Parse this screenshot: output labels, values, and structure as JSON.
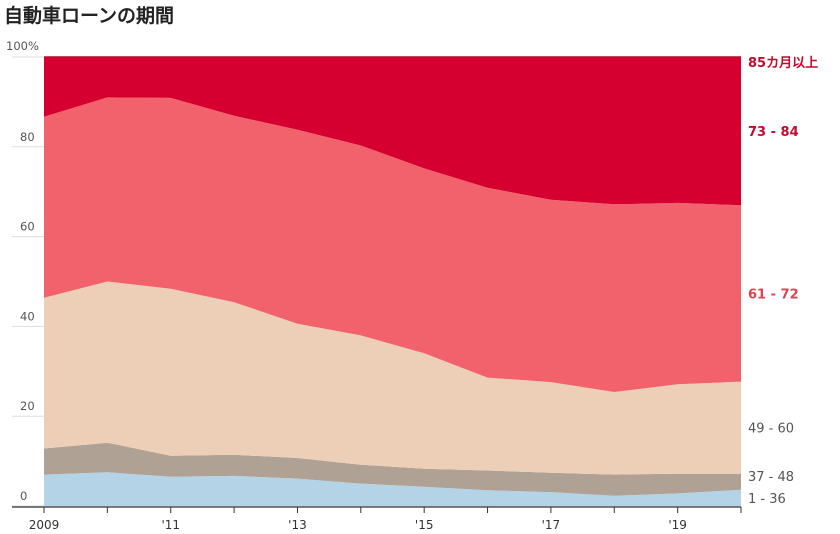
{
  "chart_data": {
    "type": "area",
    "stacked": true,
    "title": "自動車ローンの期間",
    "x": [
      2009,
      2010,
      2011,
      2012,
      2013,
      2014,
      2015,
      2016,
      2017,
      2018,
      2019,
      2020
    ],
    "x_tick_labels": [
      "2009",
      "'11",
      "'13",
      "'15",
      "'17",
      "'19"
    ],
    "x_tick_values": [
      2009,
      2011,
      2013,
      2015,
      2017,
      2019
    ],
    "y_tick_labels": [
      "0",
      "20",
      "40",
      "60",
      "80",
      "100%"
    ],
    "y_tick_values": [
      0,
      20,
      40,
      60,
      80,
      100
    ],
    "ylim": [
      0,
      100
    ],
    "series": [
      {
        "name": "1 - 36",
        "color": "#b5d3e6",
        "label_color": "#555555",
        "values": [
          7.0,
          7.5,
          6.5,
          6.7,
          6.1,
          5.0,
          4.3,
          3.5,
          3.1,
          2.3,
          2.8,
          3.6
        ]
      },
      {
        "name": "37 - 48",
        "color": "#b0a195",
        "label_color": "#555555",
        "values": [
          5.8,
          6.6,
          4.7,
          4.7,
          4.6,
          4.2,
          4.0,
          4.4,
          4.3,
          4.7,
          4.4,
          3.6
        ]
      },
      {
        "name": "49 - 60",
        "color": "#eccfb6",
        "label_color": "#555555",
        "values": [
          33.6,
          35.9,
          37.2,
          34.0,
          29.9,
          28.8,
          25.7,
          20.7,
          20.2,
          18.4,
          19.9,
          20.5
        ]
      },
      {
        "name": "61 - 72",
        "color": "#f2626c",
        "label_color": "#e04250",
        "values": [
          40.3,
          41.0,
          42.5,
          41.5,
          43.2,
          42.3,
          41.2,
          42.3,
          40.6,
          41.8,
          40.4,
          39.3
        ]
      },
      {
        "name": "73 - 84",
        "color": "#d5002f",
        "label_color": "#c4092e",
        "values": [
          13.3,
          9.0,
          9.1,
          13.1,
          16.2,
          19.7,
          24.8,
          29.1,
          31.8,
          32.8,
          32.5,
          33.0
        ]
      },
      {
        "name": "85カ月以上",
        "color": "#b30a2a",
        "label_color": "#c4092e",
        "values": [
          0,
          0,
          0,
          0,
          0,
          0,
          0,
          0,
          0,
          0,
          0,
          0
        ]
      }
    ]
  }
}
